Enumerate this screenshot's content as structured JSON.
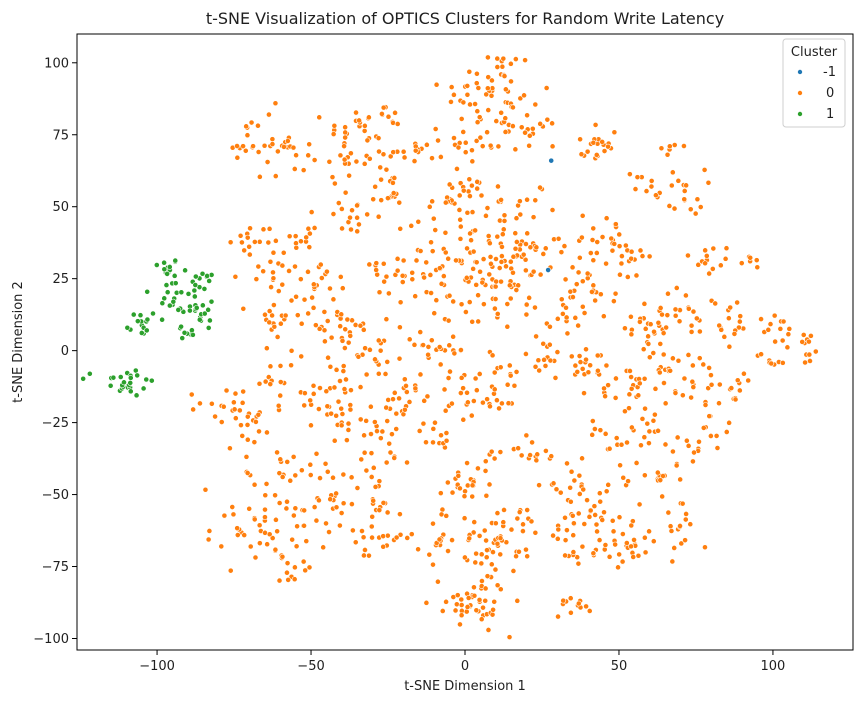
{
  "chart_data": {
    "type": "scatter",
    "title": "t-SNE Visualization of OPTICS Clusters for Random Write Latency",
    "xlabel": "t-SNE Dimension 1",
    "ylabel": "t-SNE Dimension 2",
    "xlim": [
      -126,
      126
    ],
    "ylim": [
      -104,
      110
    ],
    "xticks": [
      -100,
      -50,
      0,
      50,
      100
    ],
    "yticks": [
      -100,
      -75,
      -50,
      -25,
      0,
      25,
      50,
      75,
      100
    ],
    "xtick_labels": [
      "−100",
      "−50",
      "0",
      "50",
      "100"
    ],
    "ytick_labels": [
      "−100",
      "−75",
      "−50",
      "−25",
      "0",
      "25",
      "50",
      "75",
      "100"
    ],
    "grid": false,
    "legend": {
      "title": "Cluster",
      "placement": "top-right",
      "entries": [
        {
          "name": "-1",
          "color": "#1f77b4"
        },
        {
          "name": "0",
          "color": "#ff7f0e"
        },
        {
          "name": "1",
          "color": "#2ca02c"
        }
      ]
    },
    "series": [
      {
        "name": "-1",
        "color": "#1f77b4",
        "points": [
          [
            28,
            66
          ],
          [
            27,
            28
          ]
        ]
      },
      {
        "name": "1",
        "color": "#2ca02c",
        "clusters": [
          {
            "center": [
              -97,
              29
            ],
            "spread": [
              2.2,
              1.5
            ],
            "count": 12
          },
          {
            "center": [
              -94,
              18
            ],
            "spread": [
              5.0,
              6.0
            ],
            "count": 26
          },
          {
            "center": [
              -85,
              24
            ],
            "spread": [
              1.8,
              1.6
            ],
            "count": 10
          },
          {
            "center": [
              -84,
              14
            ],
            "spread": [
              2.8,
              3.6
            ],
            "count": 16
          },
          {
            "center": [
              -106,
              9
            ],
            "spread": [
              2.0,
              2.6
            ],
            "count": 14
          },
          {
            "center": [
              -110,
              -11
            ],
            "spread": [
              4.6,
              2.6
            ],
            "count": 26
          },
          {
            "center": [
              -90,
              6
            ],
            "spread": [
              1.5,
              1.2
            ],
            "count": 6
          }
        ]
      },
      {
        "name": "0",
        "color": "#ff7f0e",
        "clusters": [
          {
            "center": [
              8,
              90
            ],
            "spread": [
              8,
              8
            ],
            "count": 55
          },
          {
            "center": [
              20,
              78
            ],
            "spread": [
              6,
              5
            ],
            "count": 24
          },
          {
            "center": [
              -35,
              77
            ],
            "spread": [
              5,
              4
            ],
            "count": 18
          },
          {
            "center": [
              -27,
              80
            ],
            "spread": [
              3,
              3
            ],
            "count": 12
          },
          {
            "center": [
              -72,
              72
            ],
            "spread": [
              3,
              3
            ],
            "count": 10
          },
          {
            "center": [
              -64,
              72
            ],
            "spread": [
              4,
              6
            ],
            "count": 18
          },
          {
            "center": [
              -56,
              67
            ],
            "spread": [
              3,
              4
            ],
            "count": 10
          },
          {
            "center": [
              -15,
              70
            ],
            "spread": [
              4,
              3
            ],
            "count": 14
          },
          {
            "center": [
              5,
              72
            ],
            "spread": [
              4,
              4
            ],
            "count": 14
          },
          {
            "center": [
              -28,
              67
            ],
            "spread": [
              4,
              4
            ],
            "count": 14
          },
          {
            "center": [
              -40,
              65
            ],
            "spread": [
              3,
              3
            ],
            "count": 10
          },
          {
            "center": [
              45,
              74
            ],
            "spread": [
              3,
              3
            ],
            "count": 12
          },
          {
            "center": [
              40,
              68
            ],
            "spread": [
              3,
              3
            ],
            "count": 8
          },
          {
            "center": [
              68,
              71
            ],
            "spread": [
              2,
              1.5
            ],
            "count": 6
          },
          {
            "center": [
              72,
              55
            ],
            "spread": [
              3,
              4
            ],
            "count": 16
          },
          {
            "center": [
              58,
              57
            ],
            "spread": [
              3,
              3
            ],
            "count": 10
          },
          {
            "center": [
              -2,
              53
            ],
            "spread": [
              5,
              4
            ],
            "count": 28
          },
          {
            "center": [
              -25,
              56
            ],
            "spread": [
              3,
              3
            ],
            "count": 12
          },
          {
            "center": [
              -35,
              48
            ],
            "spread": [
              5,
              5
            ],
            "count": 18
          },
          {
            "center": [
              20,
              53
            ],
            "spread": [
              4,
              3
            ],
            "count": 10
          },
          {
            "center": [
              8,
              27
            ],
            "spread": [
              14,
              10
            ],
            "count": 150
          },
          {
            "center": [
              45,
              38
            ],
            "spread": [
              5,
              4
            ],
            "count": 18
          },
          {
            "center": [
              -50,
              42
            ],
            "spread": [
              5,
              4
            ],
            "count": 14
          },
          {
            "center": [
              -68,
              38
            ],
            "spread": [
              4,
              4
            ],
            "count": 14
          },
          {
            "center": [
              -62,
              30
            ],
            "spread": [
              5,
              5
            ],
            "count": 16
          },
          {
            "center": [
              -48,
              22
            ],
            "spread": [
              6,
              5
            ],
            "count": 24
          },
          {
            "center": [
              -28,
              25
            ],
            "spread": [
              6,
              4
            ],
            "count": 20
          },
          {
            "center": [
              -60,
              10
            ],
            "spread": [
              5,
              4
            ],
            "count": 18
          },
          {
            "center": [
              -42,
              7
            ],
            "spread": [
              6,
              4
            ],
            "count": 20
          },
          {
            "center": [
              -30,
              0
            ],
            "spread": [
              6,
              5
            ],
            "count": 22
          },
          {
            "center": [
              -15,
              3
            ],
            "spread": [
              3,
              3
            ],
            "count": 10
          },
          {
            "center": [
              -5,
              0
            ],
            "spread": [
              3,
              3
            ],
            "count": 10
          },
          {
            "center": [
              18,
              35
            ],
            "spread": [
              5,
              5
            ],
            "count": 20
          },
          {
            "center": [
              30,
              10
            ],
            "spread": [
              3,
              2
            ],
            "count": 8
          },
          {
            "center": [
              40,
              20
            ],
            "spread": [
              4,
              5
            ],
            "count": 20
          },
          {
            "center": [
              53,
              30
            ],
            "spread": [
              4,
              4
            ],
            "count": 16
          },
          {
            "center": [
              58,
              10
            ],
            "spread": [
              6,
              6
            ],
            "count": 28
          },
          {
            "center": [
              78,
              30
            ],
            "spread": [
              3,
              3
            ],
            "count": 14
          },
          {
            "center": [
              93,
              32
            ],
            "spread": [
              1.5,
              1.5
            ],
            "count": 6
          },
          {
            "center": [
              75,
              15
            ],
            "spread": [
              6,
              6
            ],
            "count": 26
          },
          {
            "center": [
              88,
              8
            ],
            "spread": [
              3,
              3
            ],
            "count": 10
          },
          {
            "center": [
              103,
              7
            ],
            "spread": [
              3,
              3
            ],
            "count": 12
          },
          {
            "center": [
              110,
              1
            ],
            "spread": [
              3,
              3
            ],
            "count": 12
          },
          {
            "center": [
              100,
              -3
            ],
            "spread": [
              3,
              2
            ],
            "count": 8
          },
          {
            "center": [
              88,
              -12
            ],
            "spread": [
              3,
              4
            ],
            "count": 10
          },
          {
            "center": [
              75,
              -12
            ],
            "spread": [
              5,
              6
            ],
            "count": 22
          },
          {
            "center": [
              65,
              -8
            ],
            "spread": [
              4,
              4
            ],
            "count": 14
          },
          {
            "center": [
              50,
              -12
            ],
            "spread": [
              5,
              5
            ],
            "count": 22
          },
          {
            "center": [
              38,
              -5
            ],
            "spread": [
              4,
              4
            ],
            "count": 16
          },
          {
            "center": [
              25,
              -3
            ],
            "spread": [
              4,
              4
            ],
            "count": 14
          },
          {
            "center": [
              12,
              -12
            ],
            "spread": [
              5,
              5
            ],
            "count": 22
          },
          {
            "center": [
              0,
              -15
            ],
            "spread": [
              5,
              5
            ],
            "count": 20
          },
          {
            "center": [
              -10,
              -30
            ],
            "spread": [
              3,
              3
            ],
            "count": 12
          },
          {
            "center": [
              -25,
              -30
            ],
            "spread": [
              5,
              8
            ],
            "count": 35
          },
          {
            "center": [
              -42,
              -15
            ],
            "spread": [
              5,
              8
            ],
            "count": 40
          },
          {
            "center": [
              -62,
              -10
            ],
            "spread": [
              4,
              5
            ],
            "count": 16
          },
          {
            "center": [
              -78,
              -20
            ],
            "spread": [
              6,
              6
            ],
            "count": 20
          },
          {
            "center": [
              -68,
              -25
            ],
            "spread": [
              3,
              3
            ],
            "count": 12
          },
          {
            "center": [
              -60,
              -42
            ],
            "spread": [
              6,
              4
            ],
            "count": 22
          },
          {
            "center": [
              -72,
              -58
            ],
            "spread": [
              6,
              6
            ],
            "count": 22
          },
          {
            "center": [
              -60,
              -68
            ],
            "spread": [
              5,
              4
            ],
            "count": 18
          },
          {
            "center": [
              -50,
              -55
            ],
            "spread": [
              5,
              5
            ],
            "count": 16
          },
          {
            "center": [
              -55,
              -75
            ],
            "spread": [
              3,
              2
            ],
            "count": 10
          },
          {
            "center": [
              -40,
              -52
            ],
            "spread": [
              5,
              6
            ],
            "count": 18
          },
          {
            "center": [
              -30,
              -65
            ],
            "spread": [
              5,
              4
            ],
            "count": 20
          },
          {
            "center": [
              -28,
              -53
            ],
            "spread": [
              3,
              3
            ],
            "count": 10
          },
          {
            "center": [
              0,
              -46
            ],
            "spread": [
              4,
              3
            ],
            "count": 22
          },
          {
            "center": [
              5,
              -68
            ],
            "spread": [
              10,
              7
            ],
            "count": 70
          },
          {
            "center": [
              2,
              -88
            ],
            "spread": [
              6,
              4
            ],
            "count": 40
          },
          {
            "center": [
              35,
              -48
            ],
            "spread": [
              5,
              4
            ],
            "count": 20
          },
          {
            "center": [
              45,
              -55
            ],
            "spread": [
              6,
              5
            ],
            "count": 22
          },
          {
            "center": [
              40,
              -70
            ],
            "spread": [
              5,
              3
            ],
            "count": 18
          },
          {
            "center": [
              55,
              -70
            ],
            "spread": [
              5,
              4
            ],
            "count": 18
          },
          {
            "center": [
              60,
              -45
            ],
            "spread": [
              5,
              4
            ],
            "count": 16
          },
          {
            "center": [
              72,
              -60
            ],
            "spread": [
              4,
              5
            ],
            "count": 16
          },
          {
            "center": [
              35,
              -88
            ],
            "spread": [
              3,
              2
            ],
            "count": 12
          },
          {
            "center": [
              32,
              -62
            ],
            "spread": [
              3,
              3
            ],
            "count": 10
          },
          {
            "center": [
              18,
              -60
            ],
            "spread": [
              3,
              3
            ],
            "count": 8
          },
          {
            "center": [
              24,
              -35
            ],
            "spread": [
              3,
              4
            ],
            "count": 10
          },
          {
            "center": [
              48,
              -30
            ],
            "spread": [
              4,
              4
            ],
            "count": 14
          },
          {
            "center": [
              60,
              -25
            ],
            "spread": [
              4,
              4
            ],
            "count": 14
          },
          {
            "center": [
              72,
              -35
            ],
            "spread": [
              3,
              3
            ],
            "count": 10
          },
          {
            "center": [
              80,
              -28
            ],
            "spread": [
              3,
              3
            ],
            "count": 8
          },
          {
            "center": [
              12,
              -35
            ],
            "spread": [
              3,
              2
            ],
            "count": 8
          },
          {
            "center": [
              -18,
              -12
            ],
            "spread": [
              3,
              4
            ],
            "count": 12
          }
        ]
      }
    ]
  }
}
